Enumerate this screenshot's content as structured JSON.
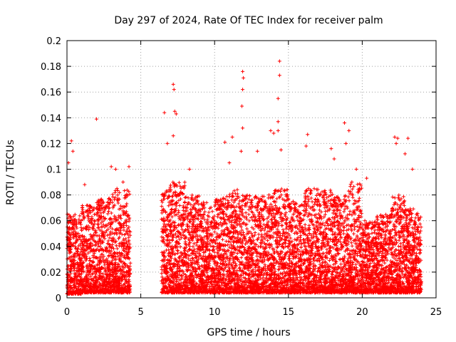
{
  "chart_data": {
    "type": "scatter",
    "title": "Day 297 of 2024, Rate Of TEC Index for receiver palm",
    "xlabel": "GPS time / hours",
    "ylabel": "ROTI / TECUs",
    "xlim": [
      0,
      25
    ],
    "ylim": [
      0,
      0.2
    ],
    "x_ticks": [
      0,
      5,
      10,
      15,
      20,
      25
    ],
    "x_tick_labels": [
      "0",
      "5",
      "10",
      "15",
      "20",
      "25"
    ],
    "y_ticks": [
      0,
      0.02,
      0.04,
      0.06,
      0.08,
      0.1,
      0.12,
      0.14,
      0.16,
      0.18,
      0.2
    ],
    "y_tick_labels": [
      "0",
      "0.02",
      "0.04",
      "0.06",
      "0.08",
      "0.1",
      "0.12",
      "0.14",
      "0.16",
      "0.18",
      "0.2"
    ],
    "grid": true,
    "marker": "+",
    "color": "#ff0000",
    "data_gap_hours": [
      4.3,
      6.4
    ],
    "series": [
      {
        "name": "ROTI",
        "notable_points": [
          {
            "x": 0.1,
            "y": 0.105
          },
          {
            "x": 0.3,
            "y": 0.122
          },
          {
            "x": 0.4,
            "y": 0.114
          },
          {
            "x": 2.0,
            "y": 0.139
          },
          {
            "x": 1.2,
            "y": 0.088
          },
          {
            "x": 3.0,
            "y": 0.102
          },
          {
            "x": 3.3,
            "y": 0.1
          },
          {
            "x": 4.2,
            "y": 0.102
          },
          {
            "x": 3.8,
            "y": 0.09
          },
          {
            "x": 6.6,
            "y": 0.144
          },
          {
            "x": 6.8,
            "y": 0.12
          },
          {
            "x": 7.2,
            "y": 0.166
          },
          {
            "x": 7.25,
            "y": 0.162
          },
          {
            "x": 7.3,
            "y": 0.145
          },
          {
            "x": 7.4,
            "y": 0.143
          },
          {
            "x": 7.2,
            "y": 0.126
          },
          {
            "x": 8.3,
            "y": 0.1
          },
          {
            "x": 10.7,
            "y": 0.121
          },
          {
            "x": 11.0,
            "y": 0.105
          },
          {
            "x": 11.2,
            "y": 0.125
          },
          {
            "x": 11.8,
            "y": 0.114
          },
          {
            "x": 11.9,
            "y": 0.176
          },
          {
            "x": 11.95,
            "y": 0.171
          },
          {
            "x": 11.9,
            "y": 0.162
          },
          {
            "x": 11.85,
            "y": 0.149
          },
          {
            "x": 11.9,
            "y": 0.132
          },
          {
            "x": 12.9,
            "y": 0.114
          },
          {
            "x": 13.8,
            "y": 0.13
          },
          {
            "x": 14.0,
            "y": 0.128
          },
          {
            "x": 14.4,
            "y": 0.184
          },
          {
            "x": 14.4,
            "y": 0.173
          },
          {
            "x": 14.3,
            "y": 0.155
          },
          {
            "x": 14.3,
            "y": 0.137
          },
          {
            "x": 14.3,
            "y": 0.13
          },
          {
            "x": 14.5,
            "y": 0.115
          },
          {
            "x": 16.3,
            "y": 0.127
          },
          {
            "x": 16.2,
            "y": 0.118
          },
          {
            "x": 17.9,
            "y": 0.116
          },
          {
            "x": 18.1,
            "y": 0.108
          },
          {
            "x": 18.8,
            "y": 0.136
          },
          {
            "x": 19.1,
            "y": 0.13
          },
          {
            "x": 18.9,
            "y": 0.12
          },
          {
            "x": 19.6,
            "y": 0.1
          },
          {
            "x": 20.3,
            "y": 0.093
          },
          {
            "x": 22.2,
            "y": 0.125
          },
          {
            "x": 22.4,
            "y": 0.124
          },
          {
            "x": 22.3,
            "y": 0.12
          },
          {
            "x": 23.1,
            "y": 0.124
          },
          {
            "x": 22.9,
            "y": 0.112
          },
          {
            "x": 23.4,
            "y": 0.1
          }
        ],
        "hourly_bands": [
          {
            "from": 0.0,
            "to": 1.0,
            "low": 0.003,
            "high": 0.065
          },
          {
            "from": 1.0,
            "to": 2.0,
            "low": 0.004,
            "high": 0.072
          },
          {
            "from": 2.0,
            "to": 3.0,
            "low": 0.004,
            "high": 0.078
          },
          {
            "from": 3.0,
            "to": 4.3,
            "low": 0.004,
            "high": 0.085
          },
          {
            "from": 6.4,
            "to": 7.0,
            "low": 0.004,
            "high": 0.085
          },
          {
            "from": 7.0,
            "to": 8.0,
            "low": 0.004,
            "high": 0.09
          },
          {
            "from": 8.0,
            "to": 9.0,
            "low": 0.004,
            "high": 0.08
          },
          {
            "from": 9.0,
            "to": 10.0,
            "low": 0.004,
            "high": 0.075
          },
          {
            "from": 10.0,
            "to": 11.0,
            "low": 0.004,
            "high": 0.08
          },
          {
            "from": 11.0,
            "to": 12.0,
            "low": 0.004,
            "high": 0.085
          },
          {
            "from": 12.0,
            "to": 13.0,
            "low": 0.004,
            "high": 0.08
          },
          {
            "from": 13.0,
            "to": 14.0,
            "low": 0.004,
            "high": 0.08
          },
          {
            "from": 14.0,
            "to": 15.0,
            "low": 0.004,
            "high": 0.085
          },
          {
            "from": 15.0,
            "to": 16.0,
            "low": 0.004,
            "high": 0.075
          },
          {
            "from": 16.0,
            "to": 17.0,
            "low": 0.004,
            "high": 0.085
          },
          {
            "from": 17.0,
            "to": 18.0,
            "low": 0.004,
            "high": 0.085
          },
          {
            "from": 18.0,
            "to": 19.0,
            "low": 0.004,
            "high": 0.08
          },
          {
            "from": 19.0,
            "to": 20.0,
            "low": 0.004,
            "high": 0.09
          },
          {
            "from": 20.0,
            "to": 21.0,
            "low": 0.004,
            "high": 0.06
          },
          {
            "from": 21.0,
            "to": 22.0,
            "low": 0.004,
            "high": 0.065
          },
          {
            "from": 22.0,
            "to": 23.0,
            "low": 0.004,
            "high": 0.08
          },
          {
            "from": 23.0,
            "to": 24.0,
            "low": 0.004,
            "high": 0.07
          }
        ]
      }
    ]
  }
}
